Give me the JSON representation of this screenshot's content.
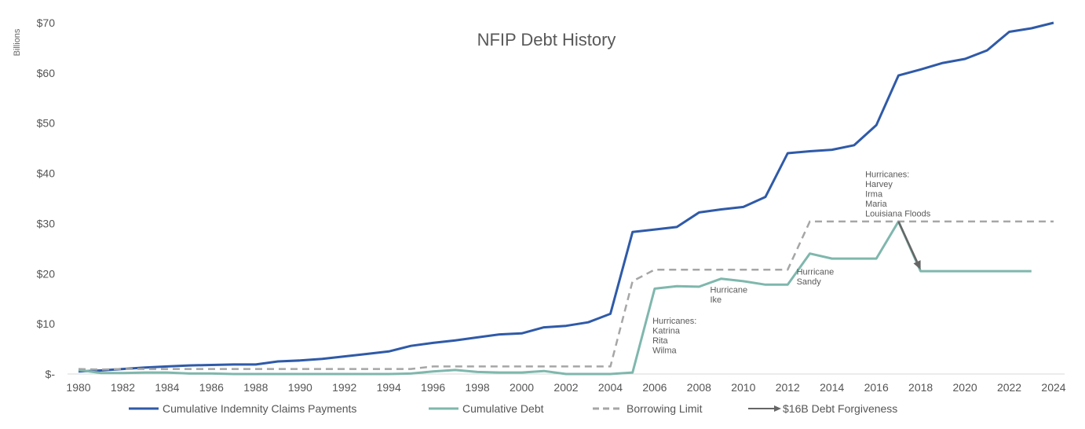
{
  "chart_data": {
    "type": "line",
    "title": "NFIP Debt History",
    "ylabel": "Billions",
    "ylim": [
      0,
      70
    ],
    "xlim": [
      1980,
      2024
    ],
    "y_ticks": [
      0,
      10,
      20,
      30,
      40,
      50,
      60,
      70
    ],
    "y_tick_labels": [
      "$-",
      "$10",
      "$20",
      "$30",
      "$40",
      "$50",
      "$60",
      "$70"
    ],
    "x_ticks": [
      "1980",
      "1982",
      "1984",
      "1986",
      "1988",
      "1990",
      "1992",
      "1994",
      "1996",
      "1998",
      "2000",
      "2002",
      "2004",
      "2006",
      "2008",
      "2010",
      "2012",
      "2014",
      "2016",
      "2018",
      "2020",
      "2022",
      "2024"
    ],
    "grid": false,
    "legend_position": "bottom",
    "series": [
      {
        "name": "Cumulative Indemnity Claims Payments",
        "color": "#2f5aa8",
        "style": "solid",
        "x": [
          1980,
          1981,
          1982,
          1983,
          1984,
          1985,
          1986,
          1987,
          1988,
          1989,
          1990,
          1991,
          1992,
          1993,
          1994,
          1995,
          1996,
          1997,
          1998,
          1999,
          2000,
          2001,
          2002,
          2003,
          2004,
          2005,
          2006,
          2007,
          2008,
          2009,
          2010,
          2011,
          2012,
          2013,
          2014,
          2015,
          2016,
          2017,
          2018,
          2019,
          2020,
          2021,
          2022,
          2023,
          2024
        ],
        "y": [
          0.5,
          0.7,
          1.0,
          1.3,
          1.5,
          1.7,
          1.8,
          1.9,
          1.9,
          2.5,
          2.7,
          3.0,
          3.5,
          4.0,
          4.5,
          5.6,
          6.2,
          6.7,
          7.3,
          7.9,
          8.1,
          9.3,
          9.6,
          10.3,
          12.0,
          28.3,
          28.8,
          29.3,
          32.2,
          32.8,
          33.3,
          35.3,
          44.0,
          44.4,
          44.7,
          45.6,
          49.6,
          59.5,
          60.7,
          62.0,
          62.8,
          64.5,
          68.2,
          68.9,
          70.0
        ]
      },
      {
        "name": "Cumulative Debt",
        "color": "#7fb7ad",
        "style": "solid",
        "x": [
          1980,
          1981,
          1982,
          1983,
          1984,
          1985,
          1986,
          1987,
          1988,
          1989,
          1990,
          1991,
          1992,
          1993,
          1994,
          1995,
          1996,
          1997,
          1998,
          1999,
          2000,
          2001,
          2002,
          2003,
          2004,
          2005,
          2006,
          2007,
          2008,
          2009,
          2010,
          2011,
          2012,
          2013,
          2014,
          2015,
          2016,
          2017,
          2018,
          2019,
          2020,
          2021,
          2022,
          2023
        ],
        "y": [
          0.8,
          0.2,
          0.2,
          0.3,
          0.3,
          0.1,
          0.1,
          0.0,
          0.0,
          0.0,
          0.0,
          0.0,
          0.0,
          0.0,
          0.0,
          0.1,
          0.5,
          0.8,
          0.4,
          0.3,
          0.3,
          0.6,
          0.0,
          0.0,
          0.0,
          0.3,
          17.0,
          17.5,
          17.4,
          19.0,
          18.5,
          17.8,
          17.8,
          24.0,
          23.0,
          23.0,
          23.0,
          30.4,
          20.5,
          20.5,
          20.5,
          20.5,
          20.5,
          20.5
        ]
      },
      {
        "name": "Borrowing Limit",
        "color": "#a6a6a6",
        "style": "dashed",
        "x": [
          1980,
          1981,
          1982,
          1983,
          1984,
          1985,
          1986,
          1987,
          1988,
          1989,
          1990,
          1991,
          1992,
          1993,
          1994,
          1995,
          1996,
          1997,
          1998,
          1999,
          2000,
          2001,
          2002,
          2003,
          2004,
          2005,
          2006,
          2007,
          2008,
          2009,
          2010,
          2011,
          2012,
          2013,
          2014,
          2015,
          2016,
          2017,
          2018,
          2019,
          2020,
          2021,
          2022,
          2023,
          2024
        ],
        "y": [
          1.0,
          0.9,
          1.0,
          1.0,
          1.0,
          1.0,
          1.0,
          1.0,
          1.0,
          1.0,
          1.0,
          1.0,
          1.0,
          1.0,
          1.0,
          1.0,
          1.5,
          1.5,
          1.5,
          1.5,
          1.5,
          1.5,
          1.5,
          1.5,
          1.5,
          18.5,
          20.8,
          20.8,
          20.8,
          20.8,
          20.8,
          20.8,
          20.8,
          30.4,
          30.4,
          30.4,
          30.4,
          30.4,
          30.4,
          30.4,
          30.4,
          30.4,
          30.4,
          30.4,
          30.4
        ]
      }
    ],
    "arrow": {
      "name": "$16B Debt Forgiveness",
      "color": "#666666",
      "from": {
        "x": 2017,
        "y": 30.4
      },
      "to": {
        "x": 2018,
        "y": 20.8
      }
    },
    "annotations": [
      {
        "lines": [
          "Hurricanes:",
          "Katrina",
          "Rita",
          "Wilma"
        ],
        "x": 2005.9,
        "y": 10.0
      },
      {
        "lines": [
          "Hurricane",
          "Ike"
        ],
        "x": 2008.5,
        "y": 16.2
      },
      {
        "lines": [
          "Hurricane",
          "Sandy"
        ],
        "x": 2012.4,
        "y": 19.8
      },
      {
        "lines": [
          "Hurricanes:",
          "Harvey",
          "Irma",
          "Maria",
          "Louisiana Floods"
        ],
        "x": 2015.5,
        "y": 39.2
      }
    ]
  }
}
